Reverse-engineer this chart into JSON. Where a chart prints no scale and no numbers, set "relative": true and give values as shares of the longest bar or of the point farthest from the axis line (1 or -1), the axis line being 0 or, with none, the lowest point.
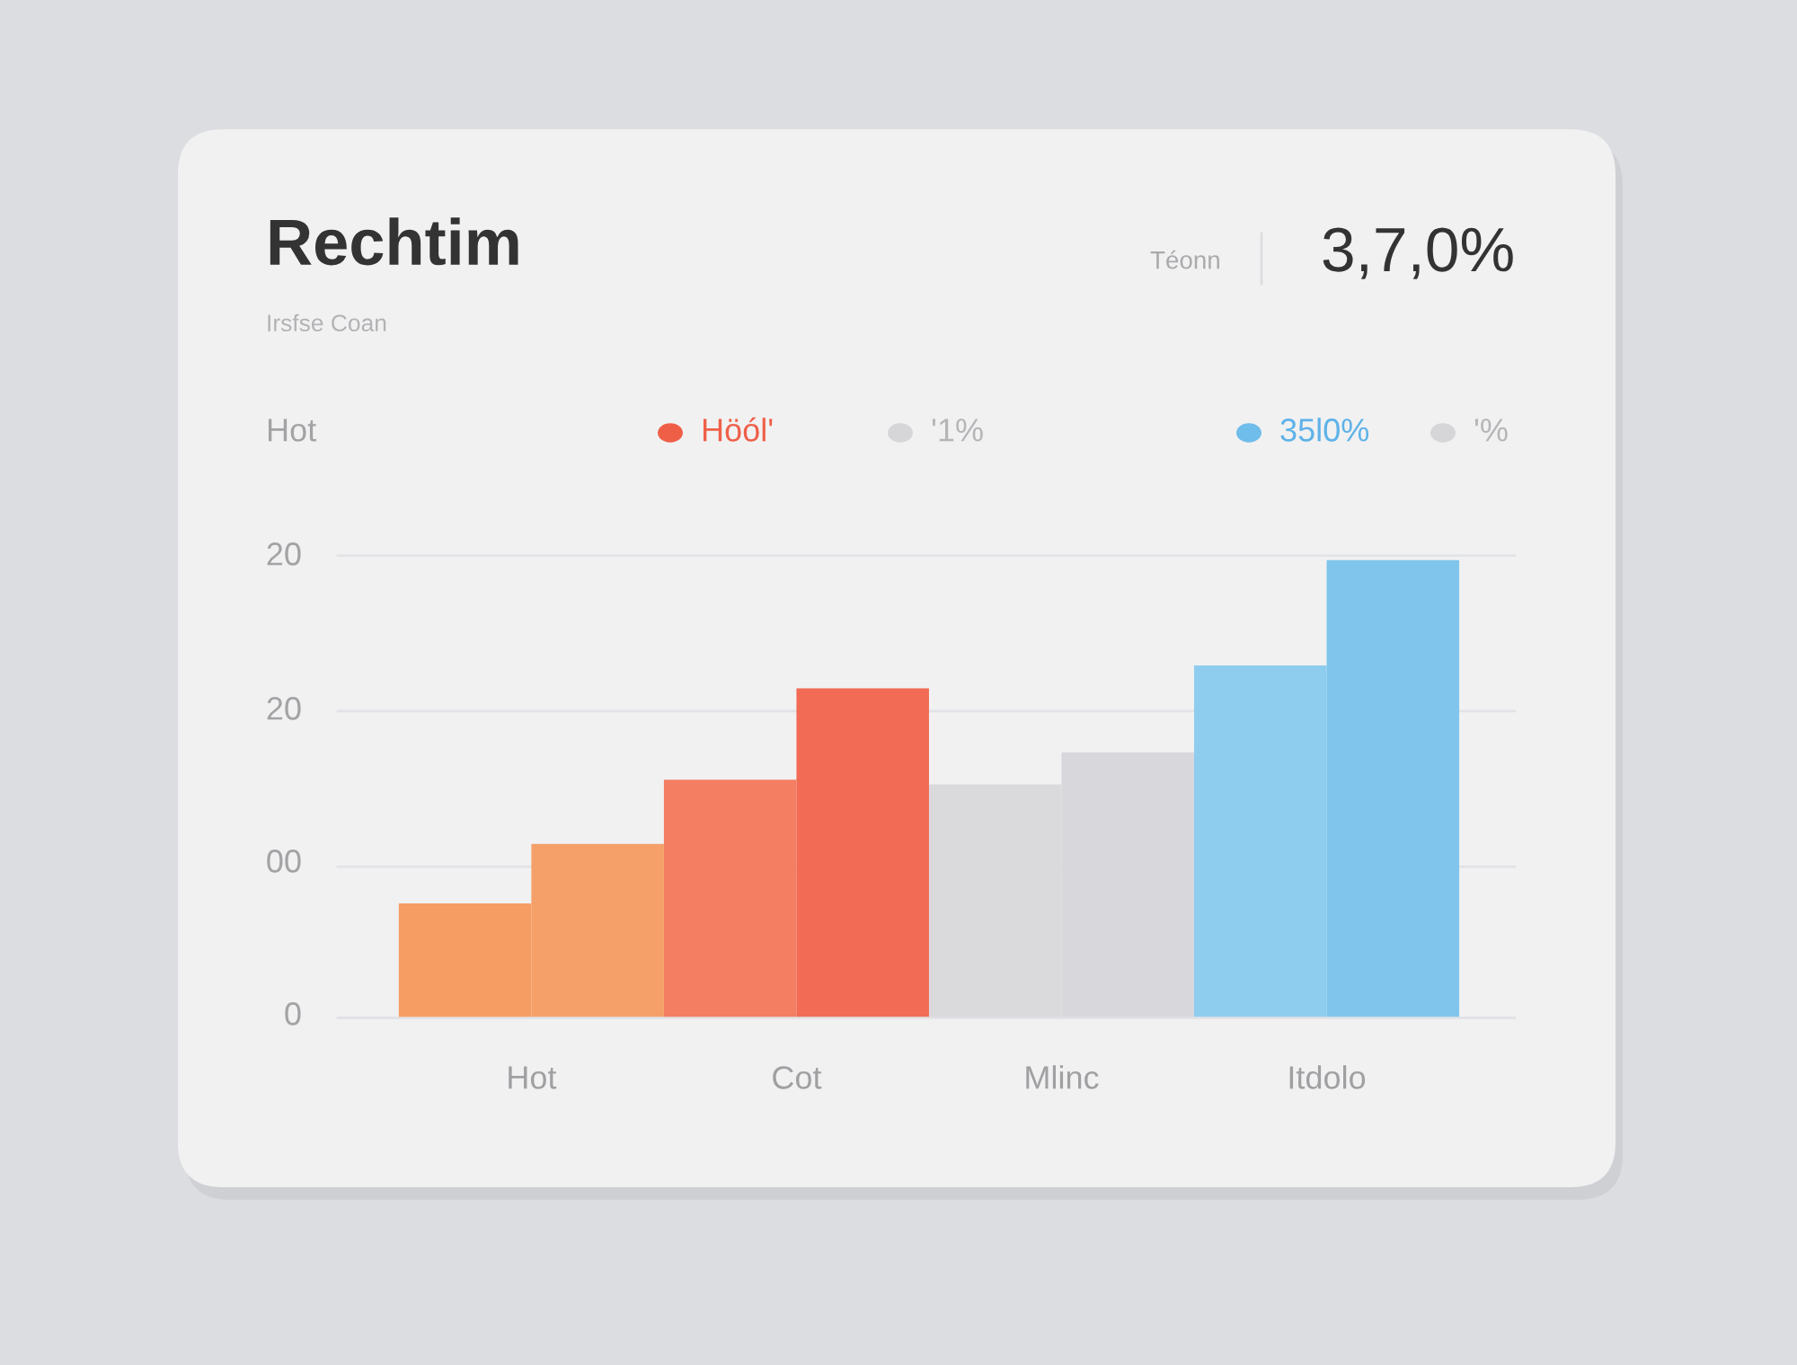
{
  "chart_data": {
    "type": "bar",
    "title": "Rechtim",
    "subtitle": "Irsfse Coan",
    "categories": [
      "Hot",
      "Cot",
      "Mlinc",
      "Itdolo"
    ],
    "relative": true,
    "series": [
      {
        "colors": [
          "#f59d63",
          "#f37e62",
          "#dadadd",
          "#8fcdef"
        ],
        "values": [
          0.25,
          0.52,
          0.51,
          0.77
        ]
      },
      {
        "colors": [
          "#f4a068",
          "#f26b55",
          "#d8d8dc",
          "#80c5ec"
        ],
        "values": [
          0.38,
          0.72,
          0.58,
          1
        ]
      }
    ],
    "ref_lines": [
      {
        "axis": "y",
        "value": 1.01,
        "color": "#e2e3e6"
      },
      {
        "axis": "y",
        "value": 0.67,
        "color": "#e2e3e6"
      },
      {
        "axis": "y",
        "value": 0.33,
        "color": "#e2e3e6"
      },
      {
        "axis": "y",
        "value": 0,
        "color": "#e2e3e6"
      }
    ],
    "annotations": [
      "Téonn",
      "3,7,0%",
      "Hot",
      "Höól'",
      "'1%",
      "35l0%",
      "'%",
      "20",
      "20",
      "00",
      "0"
    ]
  }
}
